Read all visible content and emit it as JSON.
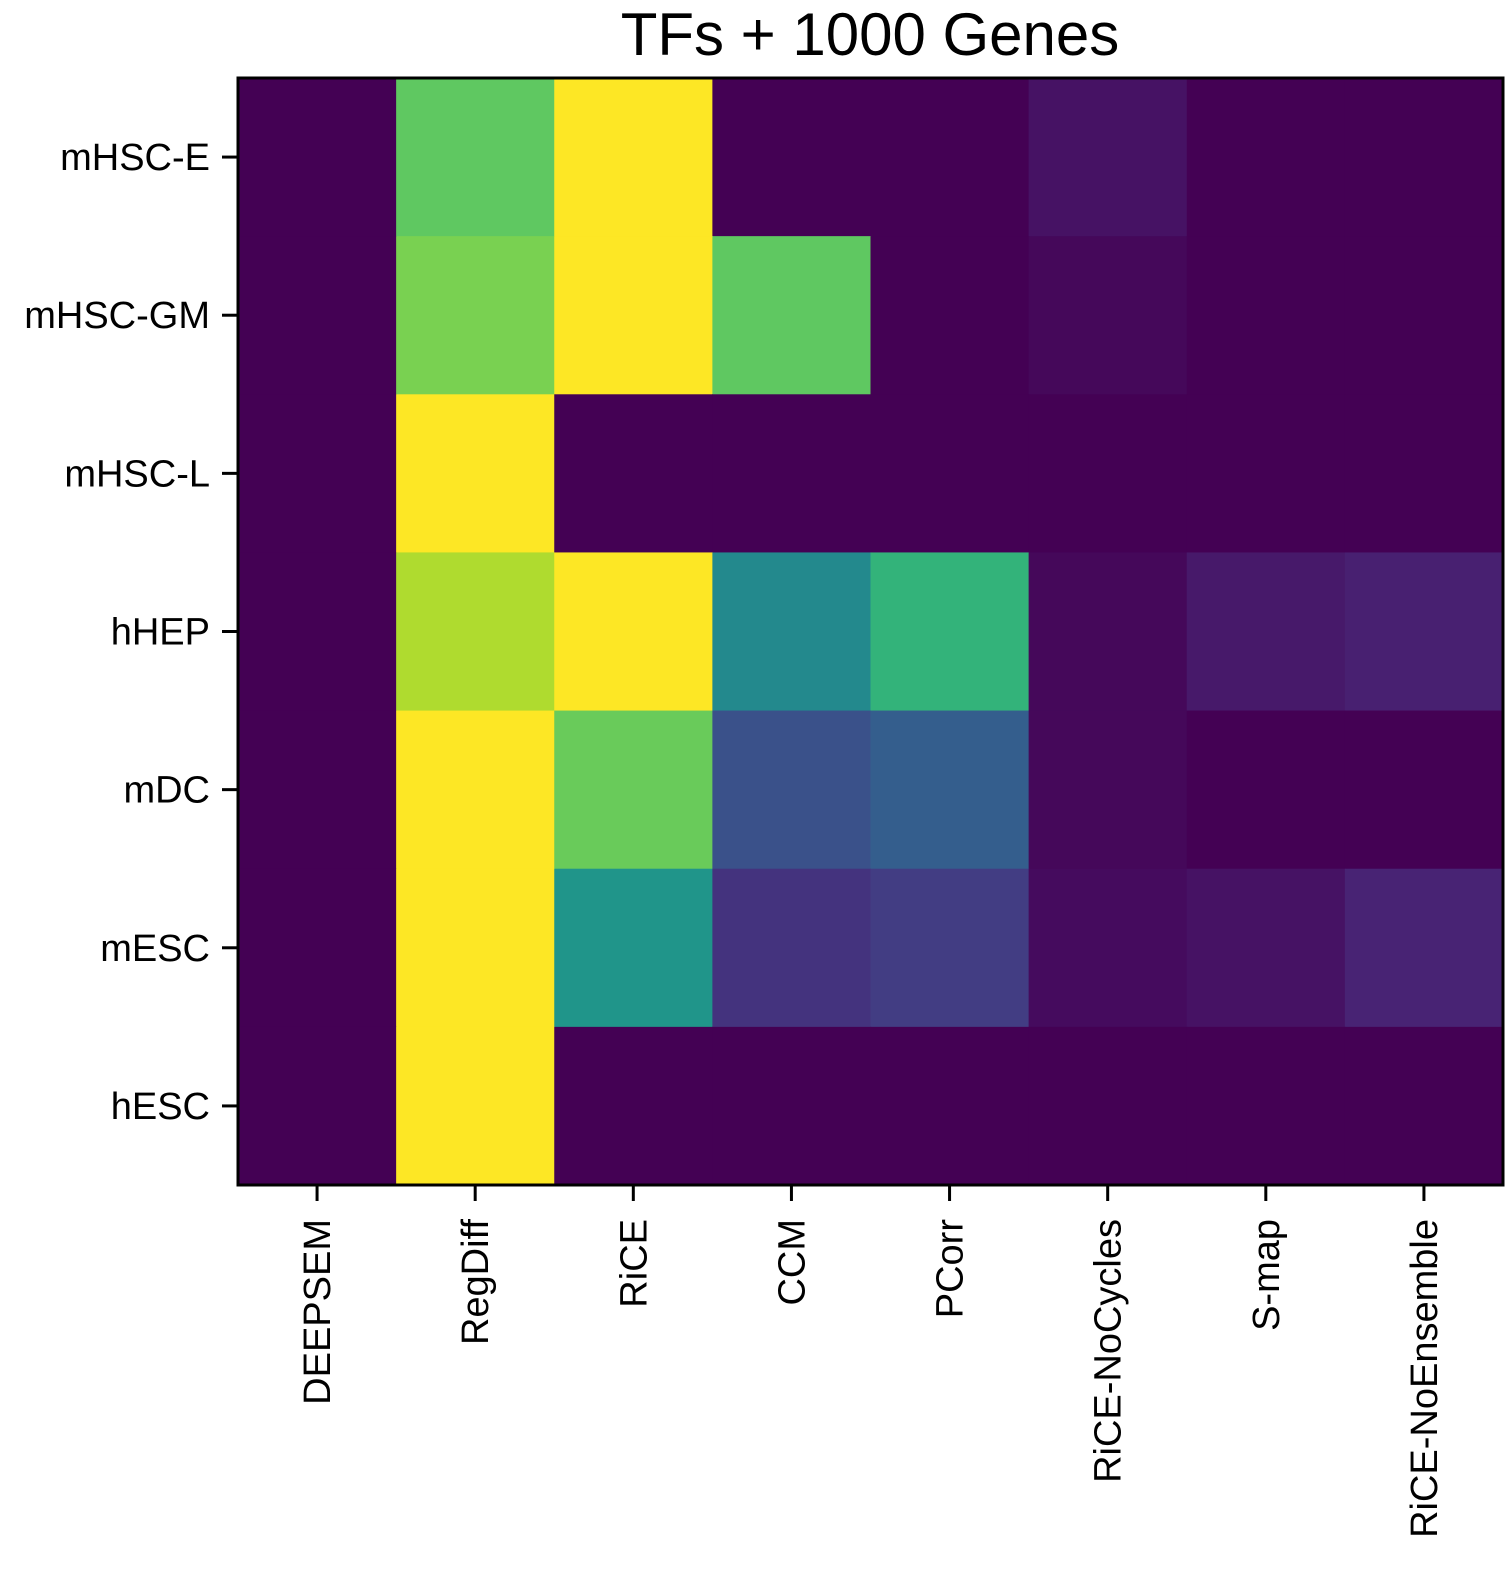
{
  "chart_data": {
    "type": "heatmap",
    "title": "TFs + 1000 Genes",
    "xlabel": "",
    "ylabel": "",
    "colormap": "viridis",
    "value_range": [
      0,
      1
    ],
    "x_categories": [
      "DEEPSEM",
      "RegDiff",
      "RiCE",
      "CCM",
      "PCorr",
      "RiCE-NoCycles",
      "S-map",
      "RiCE-NoEnsemble"
    ],
    "y_categories": [
      "mHSC-E",
      "mHSC-GM",
      "mHSC-L",
      "hHEP",
      "mDC",
      "mESC",
      "hESC"
    ],
    "values": [
      [
        0.0,
        0.75,
        1.0,
        0.0,
        0.0,
        0.05,
        0.0,
        0.0
      ],
      [
        0.0,
        0.8,
        1.0,
        0.75,
        0.0,
        0.02,
        0.0,
        0.0
      ],
      [
        0.0,
        1.0,
        0.0,
        0.0,
        0.0,
        0.0,
        0.0,
        0.0
      ],
      [
        0.0,
        0.88,
        1.0,
        0.47,
        0.65,
        0.02,
        0.07,
        0.09
      ],
      [
        0.0,
        1.0,
        0.77,
        0.25,
        0.3,
        0.02,
        0.0,
        0.0
      ],
      [
        0.0,
        1.0,
        0.52,
        0.15,
        0.18,
        0.03,
        0.05,
        0.1
      ],
      [
        0.0,
        1.0,
        0.0,
        0.0,
        0.0,
        0.0,
        0.0,
        0.0
      ]
    ],
    "grid": false,
    "legend": "none"
  }
}
